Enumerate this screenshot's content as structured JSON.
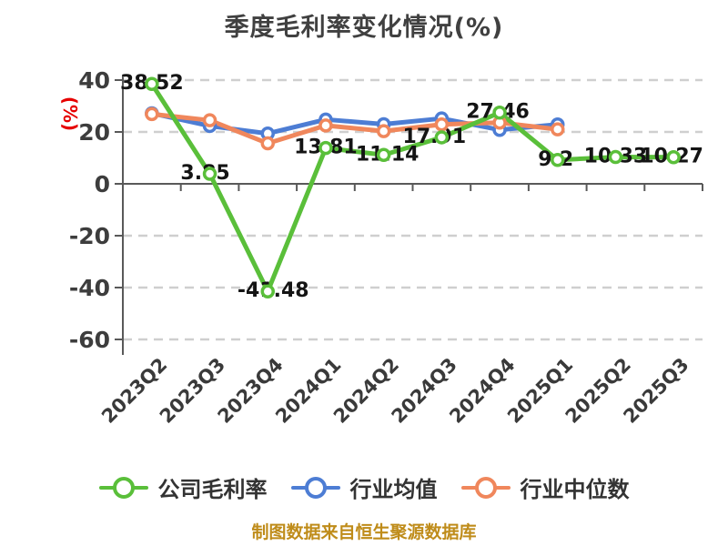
{
  "chart_data": {
    "type": "line",
    "title": "季度毛利率变化情况(%)",
    "ylabel": "(%)",
    "ylabel_color": "#e60000",
    "categories": [
      "2023Q2",
      "2023Q3",
      "2023Q4",
      "2024Q1",
      "2024Q2",
      "2024Q3",
      "2024Q4",
      "2025Q1",
      "2025Q2",
      "2025Q3"
    ],
    "yticks": [
      40,
      20,
      0,
      -20,
      -40,
      -60
    ],
    "ylim": [
      -60,
      40
    ],
    "grid": true,
    "legend_position": "bottom",
    "series": [
      {
        "name": "公司毛利率",
        "color": "#5abf3a",
        "labeled": true,
        "values": [
          38.52,
          3.85,
          -41.48,
          13.81,
          11.14,
          17.91,
          27.46,
          9.2,
          10.33,
          10.27
        ]
      },
      {
        "name": "行业均值",
        "color": "#4d7dd4",
        "labeled": false,
        "values": [
          27.2,
          22.3,
          19.4,
          24.8,
          23.0,
          25.2,
          20.8,
          22.9,
          null,
          null
        ]
      },
      {
        "name": "行业中位数",
        "color": "#f0875c",
        "labeled": false,
        "values": [
          26.9,
          24.5,
          15.6,
          22.5,
          20.3,
          22.9,
          23.6,
          21.0,
          null,
          null
        ]
      }
    ],
    "source_note": "制图数据来自恒生聚源数据库"
  }
}
